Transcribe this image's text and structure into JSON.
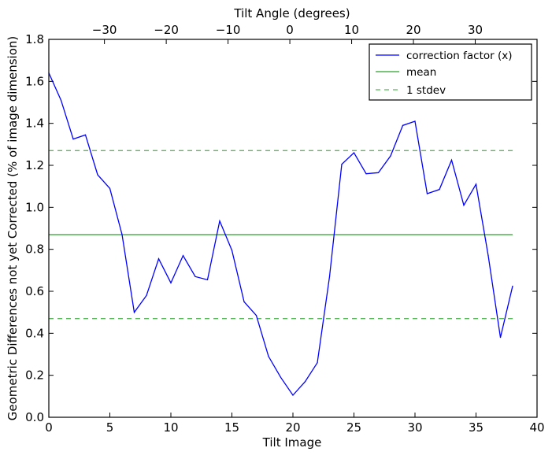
{
  "chart_data": {
    "type": "line",
    "title": "",
    "xlabel": "Tilt Image",
    "ylabel": "Geometric Differences not yet Corrected (% of image dimension)",
    "x2label": "Tilt Angle (degrees)",
    "xlim": [
      0,
      40
    ],
    "ylim": [
      0.0,
      1.8
    ],
    "x2lim": [
      -39,
      40
    ],
    "xticks": [
      0,
      5,
      10,
      15,
      20,
      25,
      30,
      35,
      40
    ],
    "xtick_labels": [
      "0",
      "5",
      "10",
      "15",
      "20",
      "25",
      "30",
      "35",
      "40"
    ],
    "yticks": [
      0.0,
      0.2,
      0.4,
      0.6,
      0.8,
      1.0,
      1.2,
      1.4,
      1.6,
      1.8
    ],
    "ytick_labels": [
      "0.0",
      "0.2",
      "0.4",
      "0.6",
      "0.8",
      "1.0",
      "1.2",
      "1.4",
      "1.6",
      "1.8"
    ],
    "x2ticks": [
      -30,
      -20,
      -10,
      0,
      10,
      20,
      30
    ],
    "x2tick_labels": [
      "−30",
      "−20",
      "−10",
      "0",
      "10",
      "20",
      "30"
    ],
    "grid": false,
    "legend_position": "top-right",
    "legend": [
      {
        "label": "correction factor (x)",
        "color": "#0000ff",
        "style": "solid"
      },
      {
        "label": "mean",
        "color": "#2ca02c",
        "style": "solid"
      },
      {
        "label": "1 stdev",
        "color": "#5cb85c",
        "style": "dashed"
      }
    ],
    "series": [
      {
        "name": "correction factor (x)",
        "color": "#0000ff",
        "x": [
          0,
          1,
          2,
          3,
          4,
          5,
          6,
          7,
          8,
          9,
          10,
          11,
          12,
          13,
          14,
          15,
          16,
          17,
          18,
          19,
          20,
          21,
          22,
          23,
          24,
          25,
          26,
          27,
          28,
          29,
          30,
          31,
          32,
          33,
          34,
          35,
          36,
          37,
          38
        ],
        "y": [
          1.64,
          1.51,
          1.325,
          1.345,
          1.155,
          1.09,
          0.87,
          0.5,
          0.58,
          0.755,
          0.64,
          0.77,
          0.67,
          0.655,
          0.935,
          0.795,
          0.55,
          0.485,
          0.29,
          0.19,
          0.105,
          0.17,
          0.26,
          0.67,
          1.205,
          1.26,
          1.16,
          1.165,
          1.245,
          1.39,
          1.41,
          1.065,
          1.085,
          1.225,
          1.01,
          1.11,
          0.77,
          0.38,
          0.625
        ]
      }
    ],
    "reference_lines": [
      {
        "name": "mean",
        "y": 0.87,
        "x_range": [
          0,
          38
        ],
        "color": "#2ca02c",
        "style": "solid"
      },
      {
        "name": "1 stdev upper",
        "y": 1.27,
        "x_range": [
          0,
          38
        ],
        "color": "#5cb85c",
        "style": "dashed"
      },
      {
        "name": "1 stdev lower",
        "y": 0.47,
        "x_range": [
          0,
          38
        ],
        "color": "#5cb85c",
        "style": "dashed"
      }
    ]
  }
}
